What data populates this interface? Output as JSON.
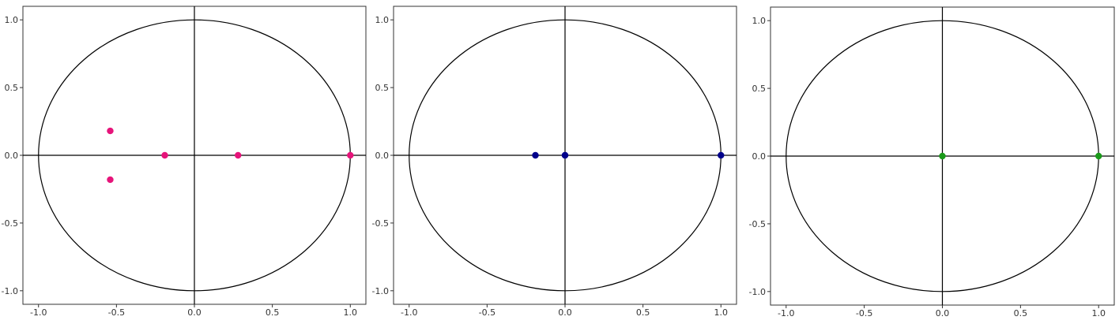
{
  "chart_data": [
    {
      "type": "scatter",
      "title": "",
      "xlabel": "",
      "ylabel": "",
      "xlim": [
        -1.1,
        1.1
      ],
      "ylim": [
        -1.1,
        1.1
      ],
      "x_ticks": [
        -1.0,
        -0.5,
        0.0,
        0.5,
        1.0
      ],
      "x_tick_labels": [
        "-1.0",
        "-0.5",
        "0.0",
        "0.5",
        "1.0"
      ],
      "y_ticks": [
        -1.0,
        -0.5,
        0.0,
        0.5,
        1.0
      ],
      "y_tick_labels": [
        "-1.0",
        "-0.5",
        "0.0",
        "0.5",
        "1.0"
      ],
      "unit_circle": true,
      "reference_lines": {
        "x": 0,
        "y": 0
      },
      "grid": false,
      "point_color": "#e6147a",
      "points": [
        {
          "x": -0.54,
          "y": 0.18
        },
        {
          "x": -0.54,
          "y": -0.18
        },
        {
          "x": -0.19,
          "y": 0.0
        },
        {
          "x": 0.28,
          "y": 0.0
        },
        {
          "x": 1.0,
          "y": 0.0
        }
      ]
    },
    {
      "type": "scatter",
      "title": "",
      "xlabel": "",
      "ylabel": "",
      "xlim": [
        -1.1,
        1.1
      ],
      "ylim": [
        -1.1,
        1.1
      ],
      "x_ticks": [
        -1.0,
        -0.5,
        0.0,
        0.5,
        1.0
      ],
      "x_tick_labels": [
        "-1.0",
        "-0.5",
        "0.0",
        "0.5",
        "1.0"
      ],
      "y_ticks": [
        -1.0,
        -0.5,
        0.0,
        0.5,
        1.0
      ],
      "y_tick_labels": [
        "-1.0",
        "-0.5",
        "0.0",
        "0.5",
        "1.0"
      ],
      "unit_circle": true,
      "reference_lines": {
        "x": 0,
        "y": 0
      },
      "grid": false,
      "point_color": "#00008b",
      "points": [
        {
          "x": -0.19,
          "y": 0.0
        },
        {
          "x": 0.0,
          "y": 0.0
        },
        {
          "x": 0.0,
          "y": 0.0
        },
        {
          "x": 1.0,
          "y": 0.0
        }
      ]
    },
    {
      "type": "scatter",
      "title": "",
      "xlabel": "",
      "ylabel": "",
      "xlim": [
        -1.1,
        1.1
      ],
      "ylim": [
        -1.1,
        1.1
      ],
      "x_ticks": [
        -1.0,
        -0.5,
        0.0,
        0.5,
        1.0
      ],
      "x_tick_labels": [
        "-1.0",
        "-0.5",
        "0.0",
        "0.5",
        "1.0"
      ],
      "y_ticks": [
        -1.0,
        -0.5,
        0.0,
        0.5,
        1.0
      ],
      "y_tick_labels": [
        "-1.0",
        "-0.5",
        "0.0",
        "0.5",
        "1.0"
      ],
      "unit_circle": true,
      "reference_lines": {
        "x": 0,
        "y": 0
      },
      "grid": false,
      "point_color": "#1a9a1a",
      "points": [
        {
          "x": 0.0,
          "y": 0.0
        },
        {
          "x": 1.0,
          "y": 0.0
        }
      ]
    }
  ]
}
